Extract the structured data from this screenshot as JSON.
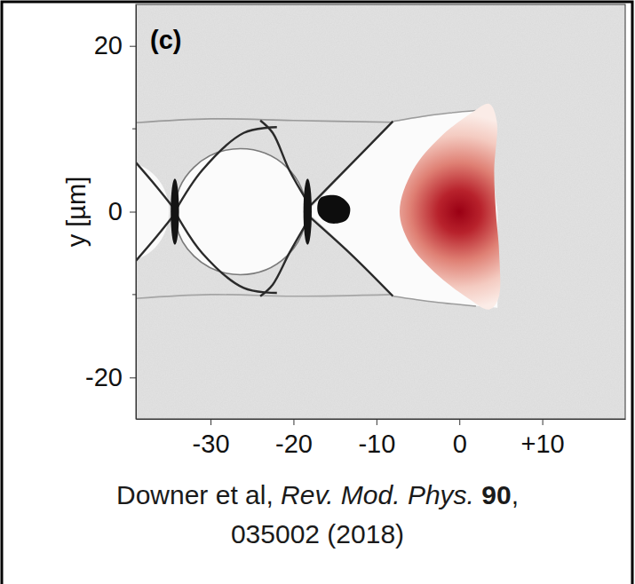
{
  "chart_data": {
    "type": "image",
    "panel_label": "(c)",
    "ylabel": "y [µm]",
    "xlim": [
      -39,
      20
    ],
    "ylim": [
      -25,
      25
    ],
    "xticks": [
      -30,
      -20,
      -10,
      0,
      {
        "value": 10,
        "label": "+10"
      }
    ],
    "yticks": [
      20,
      0,
      -20
    ],
    "y_minor_ticks": [
      10,
      -10
    ]
  },
  "citation": {
    "lines": [
      [
        {
          "text": "Downer et al, "
        },
        {
          "text": "Rev. Mod. Phys.",
          "style": "italic"
        },
        {
          "text": " 90",
          "style": "bold"
        },
        {
          "text": ","
        }
      ],
      [
        {
          "text": "035002 (2018)"
        }
      ]
    ]
  }
}
